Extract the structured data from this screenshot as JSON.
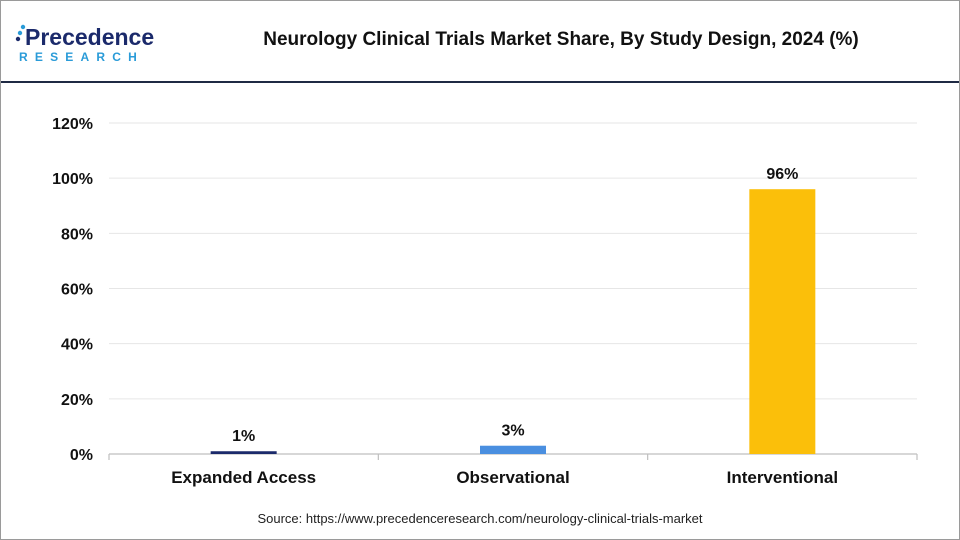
{
  "brand": {
    "name_top": "Precedence",
    "name_bottom": "RESEARCH",
    "primary_color": "#1b2a6b",
    "accent_color": "#2a9bd8"
  },
  "chart_data": {
    "type": "bar",
    "title": "Neurology Clinical Trials Market Share, By Study Design, 2024 (%)",
    "categories": [
      "Expanded Access",
      "Observational",
      "Interventional"
    ],
    "values": [
      1,
      3,
      96
    ],
    "value_labels": [
      "1%",
      "3%",
      "96%"
    ],
    "colors": [
      "#1b2a6b",
      "#4a8fe0",
      "#fbbf0a"
    ],
    "ylim": [
      0,
      120
    ],
    "yticks": [
      0,
      20,
      40,
      60,
      80,
      100,
      120
    ],
    "ytick_labels": [
      "0%",
      "20%",
      "40%",
      "60%",
      "80%",
      "100%",
      "120%"
    ],
    "xlabel": "",
    "ylabel": "",
    "grid": true,
    "legend": "none"
  },
  "footer": {
    "source": "Source: https://www.precedenceresearch.com/neurology-clinical-trials-market"
  }
}
